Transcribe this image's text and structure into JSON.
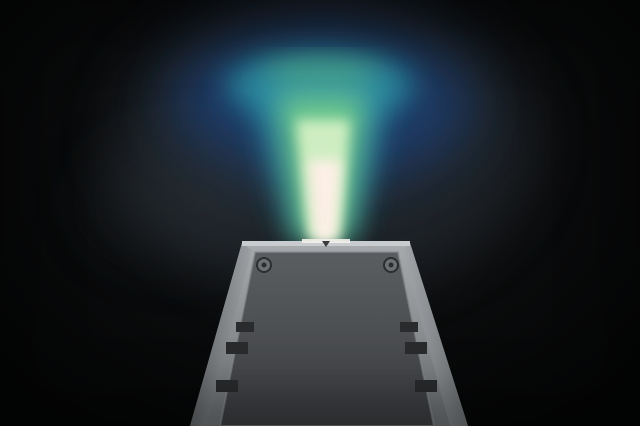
{
  "scene": {
    "subject": "light-beam-source",
    "colors": {
      "background": "#050607",
      "beam_core": "#fff0e8",
      "beam_inner": "#d9f2c8",
      "beam_green": "#6fd27a",
      "beam_teal": "#2f9fb0",
      "beam_blue": "#1e4f9c",
      "device_body": "#8e9296",
      "device_face": "#4a4c4f",
      "device_shadow": "#1a1b1c"
    }
  }
}
